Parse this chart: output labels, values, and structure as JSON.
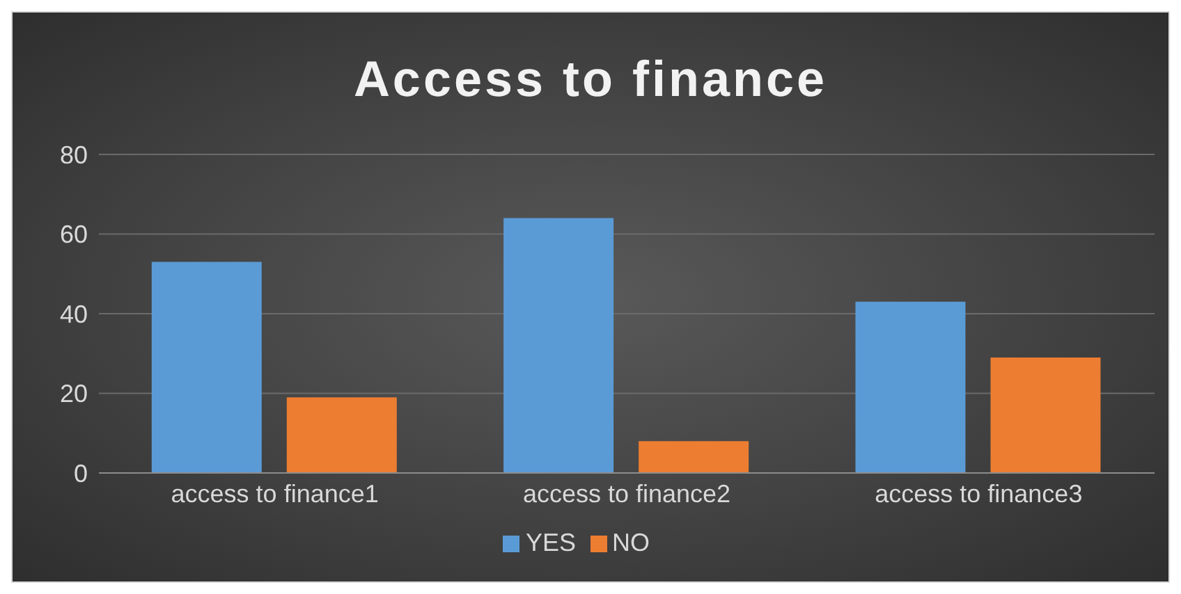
{
  "chart_data": {
    "type": "bar",
    "title": "Access to finance",
    "categories": [
      "access to finance1",
      "access to finance2",
      "access to finance3"
    ],
    "series": [
      {
        "name": "YES",
        "color": "#5b9bd5",
        "values": [
          53,
          64,
          43
        ]
      },
      {
        "name": "NO",
        "color": "#ed7d31",
        "values": [
          19,
          8,
          29
        ]
      }
    ],
    "ylim": [
      0,
      80
    ],
    "yticks": [
      0,
      20,
      40,
      60,
      80
    ],
    "grid": "y",
    "legend": "bottom"
  }
}
